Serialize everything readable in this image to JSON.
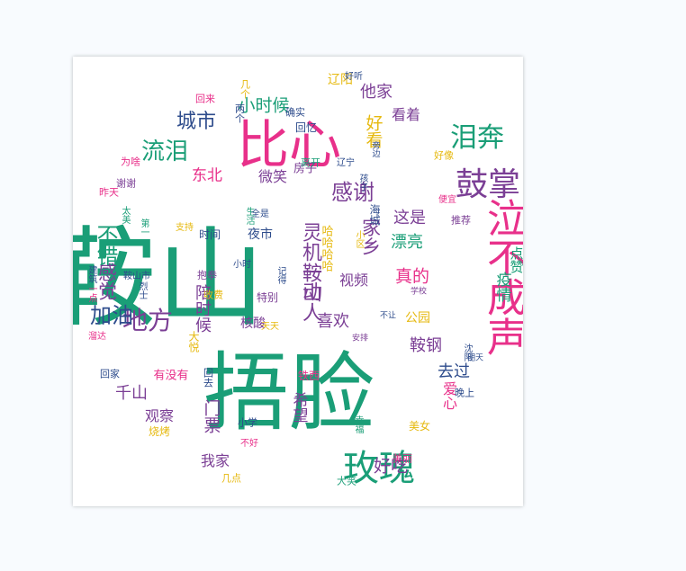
{
  "palette": {
    "green": "#1a9e77",
    "pink": "#e8308a",
    "purple": "#7b3f95",
    "navy": "#2e4c8c",
    "yellow": "#e6b90f"
  },
  "words": [
    {
      "text": "鞍山",
      "color": "green",
      "vertical": false
    },
    {
      "text": "捂脸",
      "color": "green",
      "vertical": false
    },
    {
      "text": "比心",
      "color": "pink",
      "vertical": false
    },
    {
      "text": "泣不成声",
      "color": "pink",
      "vertical": true
    },
    {
      "text": "玫瑰",
      "color": "green",
      "vertical": false
    },
    {
      "text": "鼓掌",
      "color": "purple",
      "vertical": false
    },
    {
      "text": "泪奔",
      "color": "green",
      "vertical": false
    },
    {
      "text": "流泪",
      "color": "green",
      "vertical": false
    },
    {
      "text": "感谢",
      "color": "purple",
      "vertical": false
    },
    {
      "text": "地方",
      "color": "purple",
      "vertical": false
    },
    {
      "text": "加油",
      "color": "navy",
      "vertical": false
    },
    {
      "text": "城市",
      "color": "navy",
      "vertical": false
    },
    {
      "text": "小时候",
      "color": "green",
      "vertical": false
    },
    {
      "text": "好看",
      "color": "yellow",
      "vertical": true
    },
    {
      "text": "他家",
      "color": "purple",
      "vertical": false
    },
    {
      "text": "看着",
      "color": "purple",
      "vertical": false
    },
    {
      "text": "东北",
      "color": "pink",
      "vertical": false
    },
    {
      "text": "微笑",
      "color": "purple",
      "vertical": false
    },
    {
      "text": "不错",
      "color": "green",
      "vertical": true
    },
    {
      "text": "感觉",
      "color": "purple",
      "vertical": true
    },
    {
      "text": "这是",
      "color": "purple",
      "vertical": false
    },
    {
      "text": "家乡",
      "color": "purple",
      "vertical": true
    },
    {
      "text": "漂亮",
      "color": "green",
      "vertical": false
    },
    {
      "text": "点赞",
      "color": "green",
      "vertical": true
    },
    {
      "text": "疫情",
      "color": "green",
      "vertical": true
    },
    {
      "text": "真的",
      "color": "pink",
      "vertical": false
    },
    {
      "text": "视频",
      "color": "purple",
      "vertical": false
    },
    {
      "text": "灵机一动",
      "color": "purple",
      "vertical": true
    },
    {
      "text": "鞍山人",
      "color": "purple",
      "vertical": true
    },
    {
      "text": "喜欢",
      "color": "purple",
      "vertical": false
    },
    {
      "text": "陪时候",
      "color": "purple",
      "vertical": true
    },
    {
      "text": "公园",
      "color": "yellow",
      "vertical": false
    },
    {
      "text": "鞍钢",
      "color": "purple",
      "vertical": false
    },
    {
      "text": "去过",
      "color": "navy",
      "vertical": false
    },
    {
      "text": "爱心",
      "color": "pink",
      "vertical": true
    },
    {
      "text": "千山",
      "color": "purple",
      "vertical": false
    },
    {
      "text": "观察",
      "color": "purple",
      "vertical": false
    },
    {
      "text": "门票",
      "color": "purple",
      "vertical": true
    },
    {
      "text": "希望",
      "color": "purple",
      "vertical": true
    },
    {
      "text": "好吃",
      "color": "purple",
      "vertical": false
    },
    {
      "text": "我家",
      "color": "purple",
      "vertical": false
    },
    {
      "text": "核酸",
      "color": "purple",
      "vertical": false
    },
    {
      "text": "夜市",
      "color": "navy",
      "vertical": false
    },
    {
      "text": "时间",
      "color": "navy",
      "vertical": false
    },
    {
      "text": "房子",
      "color": "purple",
      "vertical": false
    },
    {
      "text": "回忆",
      "color": "navy",
      "vertical": false
    },
    {
      "text": "辽阳",
      "color": "yellow",
      "vertical": false
    },
    {
      "text": "确实",
      "color": "navy",
      "vertical": false
    },
    {
      "text": "好听",
      "color": "navy",
      "vertical": false
    },
    {
      "text": "回来",
      "color": "pink",
      "vertical": false
    },
    {
      "text": "几个",
      "color": "yellow",
      "vertical": true
    },
    {
      "text": "两个",
      "color": "navy",
      "vertical": true
    },
    {
      "text": "为啥",
      "color": "pink",
      "vertical": false
    },
    {
      "text": "谢谢",
      "color": "purple",
      "vertical": false
    },
    {
      "text": "昨天",
      "color": "pink",
      "vertical": false
    },
    {
      "text": "好像",
      "color": "yellow",
      "vertical": false
    },
    {
      "text": "离开",
      "color": "green",
      "vertical": false
    },
    {
      "text": "辽宁",
      "color": "navy",
      "vertical": false
    },
    {
      "text": "孩子",
      "color": "navy",
      "vertical": true
    },
    {
      "text": "旁边",
      "color": "navy",
      "vertical": true
    },
    {
      "text": "便宜",
      "color": "pink",
      "vertical": false
    },
    {
      "text": "推荐",
      "color": "purple",
      "vertical": false
    },
    {
      "text": "生活",
      "color": "green",
      "vertical": true
    },
    {
      "text": "支持",
      "color": "yellow",
      "vertical": false
    },
    {
      "text": "全是",
      "color": "navy",
      "vertical": false
    },
    {
      "text": "海城",
      "color": "navy",
      "vertical": true
    },
    {
      "text": "小区",
      "color": "yellow",
      "vertical": true
    },
    {
      "text": "哈哈哈哈",
      "color": "yellow",
      "vertical": true
    },
    {
      "text": "太美",
      "color": "green",
      "vertical": true
    },
    {
      "text": "第一",
      "color": "green",
      "vertical": true
    },
    {
      "text": "鞍山市",
      "color": "navy",
      "vertical": false
    },
    {
      "text": "抱拳",
      "color": "purple",
      "vertical": false
    },
    {
      "text": "建筑",
      "color": "navy",
      "vertical": true
    },
    {
      "text": "一点",
      "color": "pink",
      "vertical": true
    },
    {
      "text": "烈士",
      "color": "navy",
      "vertical": true
    },
    {
      "text": "小时",
      "color": "navy",
      "vertical": false
    },
    {
      "text": "记得",
      "color": "navy",
      "vertical": true
    },
    {
      "text": "收费",
      "color": "yellow",
      "vertical": false
    },
    {
      "text": "特别",
      "color": "purple",
      "vertical": false
    },
    {
      "text": "学校",
      "color": "purple",
      "vertical": false
    },
    {
      "text": "不让",
      "color": "navy",
      "vertical": false
    },
    {
      "text": "沈阳",
      "color": "navy",
      "vertical": true
    },
    {
      "text": "溜达",
      "color": "pink",
      "vertical": false
    },
    {
      "text": "大悦",
      "color": "yellow",
      "vertical": true
    },
    {
      "text": "天天",
      "color": "yellow",
      "vertical": false
    },
    {
      "text": "安排",
      "color": "purple",
      "vertical": false
    },
    {
      "text": "回家",
      "color": "navy",
      "vertical": false
    },
    {
      "text": "有没有",
      "color": "pink",
      "vertical": false
    },
    {
      "text": "回去",
      "color": "navy",
      "vertical": true
    },
    {
      "text": "铁西",
      "color": "pink",
      "vertical": false
    },
    {
      "text": "明天",
      "color": "navy",
      "vertical": false
    },
    {
      "text": "晚上",
      "color": "navy",
      "vertical": false
    },
    {
      "text": "美女",
      "color": "yellow",
      "vertical": false
    },
    {
      "text": "幸福",
      "color": "green",
      "vertical": true
    },
    {
      "text": "小学",
      "color": "navy",
      "vertical": false
    },
    {
      "text": "烧烤",
      "color": "yellow",
      "vertical": false
    },
    {
      "text": "不好",
      "color": "pink",
      "vertical": false
    },
    {
      "text": "美丽",
      "color": "pink",
      "vertical": false
    },
    {
      "text": "几点",
      "color": "yellow",
      "vertical": false
    },
    {
      "text": "大笑",
      "color": "green",
      "vertical": false
    }
  ]
}
